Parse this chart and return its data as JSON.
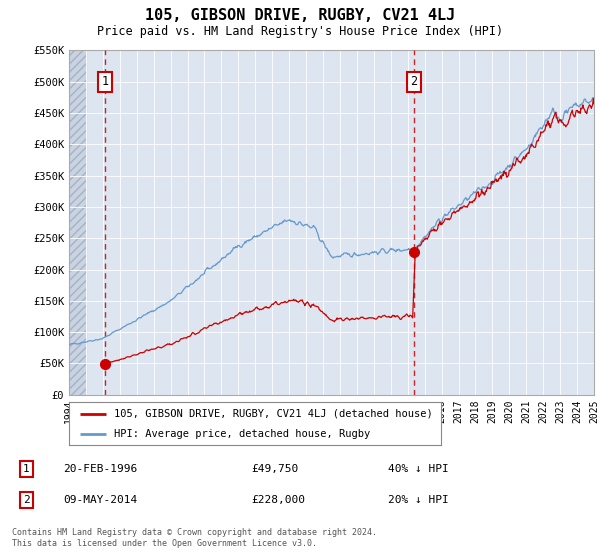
{
  "title": "105, GIBSON DRIVE, RUGBY, CV21 4LJ",
  "subtitle": "Price paid vs. HM Land Registry's House Price Index (HPI)",
  "ylim": [
    0,
    550000
  ],
  "yticks": [
    0,
    50000,
    100000,
    150000,
    200000,
    250000,
    300000,
    350000,
    400000,
    450000,
    500000,
    550000
  ],
  "ytick_labels": [
    "£0",
    "£50K",
    "£100K",
    "£150K",
    "£200K",
    "£250K",
    "£300K",
    "£350K",
    "£400K",
    "£450K",
    "£500K",
    "£550K"
  ],
  "background_color": "#ffffff",
  "plot_bg_color": "#dde6f0",
  "grid_color": "#ffffff",
  "hpi_color": "#6699cc",
  "price_color": "#cc0000",
  "sale1_date": 1996.13,
  "sale1_price": 49750,
  "sale1_label": "1",
  "sale2_date": 2014.36,
  "sale2_price": 228000,
  "sale2_label": "2",
  "legend_label1": "105, GIBSON DRIVE, RUGBY, CV21 4LJ (detached house)",
  "legend_label2": "HPI: Average price, detached house, Rugby",
  "note1_label": "1",
  "note1_date": "20-FEB-1996",
  "note1_price": "£49,750",
  "note1_hpi": "40% ↓ HPI",
  "note2_label": "2",
  "note2_date": "09-MAY-2014",
  "note2_price": "£228,000",
  "note2_hpi": "20% ↓ HPI",
  "footer": "Contains HM Land Registry data © Crown copyright and database right 2024.\nThis data is licensed under the Open Government Licence v3.0.",
  "xmin": 1994,
  "xmax": 2025
}
